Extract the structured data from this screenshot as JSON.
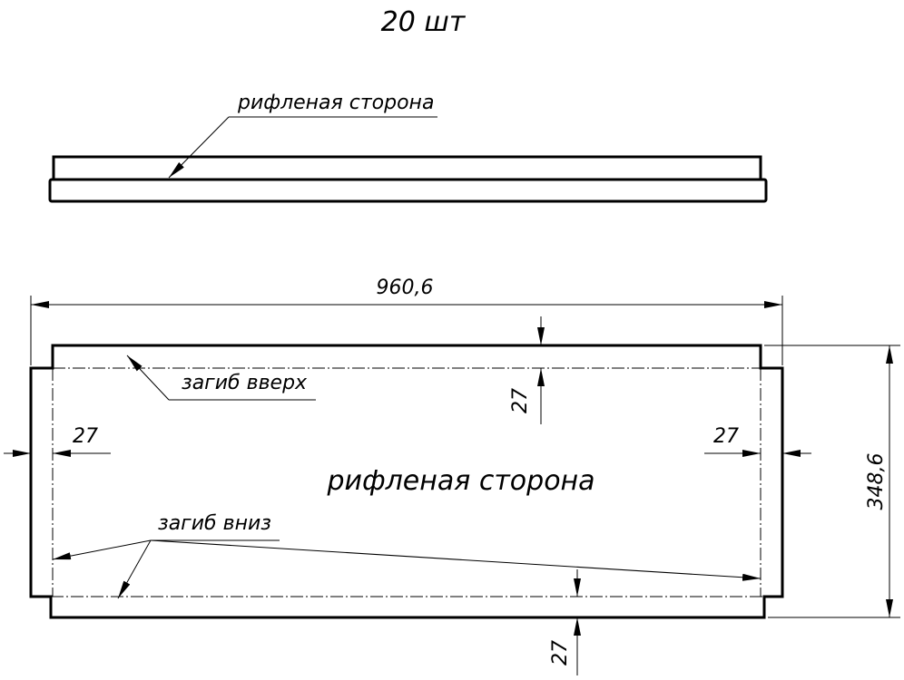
{
  "title": "20 шт",
  "side_view": {
    "label": "рифленая сторона"
  },
  "plan_view": {
    "center_label": "рифленая сторона",
    "bend_up_label": "загиб вверх",
    "bend_down_label": "загиб вниз",
    "dimensions": {
      "overall_length": "960,6",
      "overall_height": "348,6",
      "top_flange": "27",
      "bottom_flange": "27",
      "left_flange": "27",
      "right_flange": "27"
    }
  }
}
